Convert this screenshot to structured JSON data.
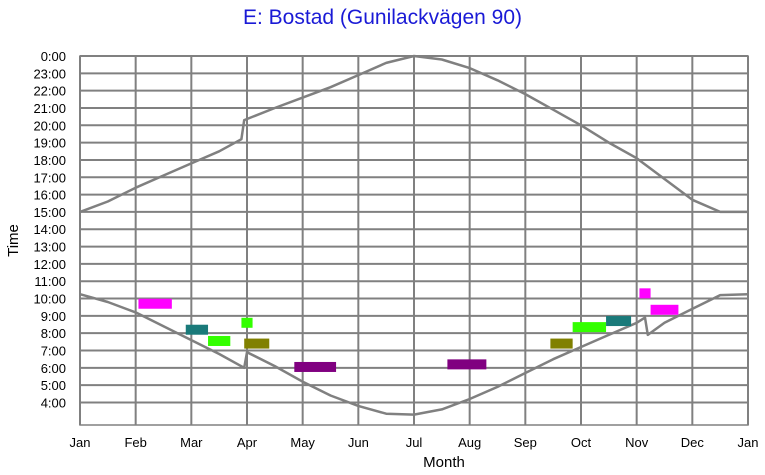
{
  "chart_data": {
    "type": "line",
    "title": "E: Bostad (Gunilackvägen 90)",
    "xlabel": "Month",
    "ylabel": "Time",
    "x_ticks": [
      "Jan",
      "Feb",
      "Mar",
      "Apr",
      "May",
      "Jun",
      "Jul",
      "Aug",
      "Sep",
      "Oct",
      "Nov",
      "Dec",
      "Jan"
    ],
    "y_ticks": [
      "0:00",
      "23:00",
      "22:00",
      "21:00",
      "20:00",
      "19:00",
      "18:00",
      "17:00",
      "16:00",
      "15:00",
      "14:00",
      "13:00",
      "12:00",
      "11:00",
      "10:00",
      "9:00",
      "8:00",
      "7:00",
      "6:00",
      "5:00",
      "4:00"
    ],
    "grid": true,
    "colors": {
      "curve": "#808080",
      "grid": "#808080",
      "title": "#1a1ad6"
    },
    "series": [
      {
        "color": "#808080",
        "points": [
          [
            0,
            15.0
          ],
          [
            0.5,
            15.6
          ],
          [
            1,
            16.4
          ],
          [
            1.5,
            17.1
          ],
          [
            2,
            17.8
          ],
          [
            2.5,
            18.5
          ],
          [
            2.9,
            19.2
          ],
          [
            2.95,
            20.3
          ],
          [
            3.5,
            21.0
          ],
          [
            4,
            21.6
          ],
          [
            4.5,
            22.2
          ],
          [
            5,
            22.9
          ],
          [
            5.5,
            23.6
          ],
          [
            6,
            24.0
          ],
          [
            6.5,
            23.8
          ],
          [
            7,
            23.3
          ],
          [
            7.5,
            22.6
          ],
          [
            8,
            21.8
          ],
          [
            8.5,
            20.9
          ],
          [
            9,
            20.0
          ],
          [
            9.5,
            19.0
          ],
          [
            10,
            18.1
          ],
          [
            10.5,
            16.9
          ],
          [
            11,
            15.7
          ],
          [
            11.5,
            15.0
          ],
          [
            12,
            15.0
          ]
        ]
      },
      {
        "color": "#808080",
        "points": [
          [
            0,
            10.25
          ],
          [
            0.5,
            9.8
          ],
          [
            1,
            9.2
          ],
          [
            1.5,
            8.4
          ],
          [
            2,
            7.6
          ],
          [
            2.5,
            6.8
          ],
          [
            2.95,
            6.0
          ],
          [
            3.0,
            6.9
          ],
          [
            3.5,
            6.1
          ],
          [
            4,
            5.2
          ],
          [
            4.5,
            4.4
          ],
          [
            5,
            3.8
          ],
          [
            5.5,
            3.35
          ],
          [
            6,
            3.3
          ],
          [
            6.5,
            3.6
          ],
          [
            7,
            4.2
          ],
          [
            7.5,
            4.9
          ],
          [
            8,
            5.7
          ],
          [
            8.5,
            6.5
          ],
          [
            9,
            7.2
          ],
          [
            9.5,
            7.9
          ],
          [
            10,
            8.6
          ],
          [
            10.15,
            8.9
          ],
          [
            10.2,
            7.9
          ],
          [
            10.5,
            8.6
          ],
          [
            11,
            9.4
          ],
          [
            11.5,
            10.2
          ],
          [
            12,
            10.25
          ]
        ]
      }
    ],
    "events": [
      {
        "x_start": 1.05,
        "x_end": 1.65,
        "y": 9.7,
        "color": "#ff00ff"
      },
      {
        "x_start": 1.9,
        "x_end": 2.3,
        "y": 8.2,
        "color": "#1a7a7a"
      },
      {
        "x_start": 2.3,
        "x_end": 2.7,
        "y": 7.55,
        "color": "#33ff00"
      },
      {
        "x_start": 2.9,
        "x_end": 3.1,
        "y": 8.6,
        "color": "#33ff00"
      },
      {
        "x_start": 2.95,
        "x_end": 3.4,
        "y": 7.4,
        "color": "#808000"
      },
      {
        "x_start": 3.85,
        "x_end": 4.6,
        "y": 6.05,
        "color": "#800080"
      },
      {
        "x_start": 6.6,
        "x_end": 7.3,
        "y": 6.2,
        "color": "#800080"
      },
      {
        "x_start": 8.45,
        "x_end": 8.85,
        "y": 7.4,
        "color": "#808000"
      },
      {
        "x_start": 8.85,
        "x_end": 9.45,
        "y": 8.35,
        "color": "#33ff00"
      },
      {
        "x_start": 9.45,
        "x_end": 9.9,
        "y": 8.7,
        "color": "#1a7a7a"
      },
      {
        "x_start": 10.05,
        "x_end": 10.25,
        "y": 10.3,
        "color": "#ff00ff"
      },
      {
        "x_start": 10.25,
        "x_end": 10.75,
        "y": 9.35,
        "color": "#ff00ff"
      }
    ]
  }
}
